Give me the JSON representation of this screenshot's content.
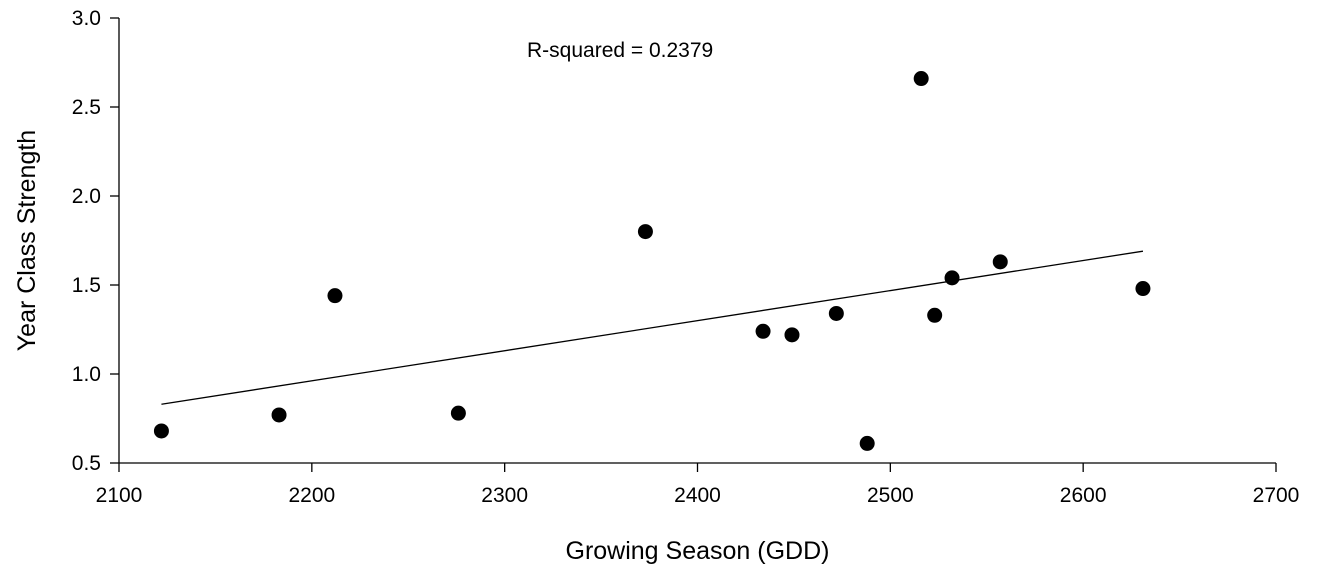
{
  "chart_data": {
    "type": "scatter",
    "title": "",
    "xlabel": "Growing Season (GDD)",
    "ylabel": "Year Class Strength",
    "xlim": [
      2100,
      2700
    ],
    "ylim": [
      0.5,
      3.0
    ],
    "x_ticks": [
      "2100",
      "2200",
      "2300",
      "2400",
      "2500",
      "2600",
      "2700"
    ],
    "y_ticks": [
      "0.5",
      "1.0",
      "1.5",
      "2.0",
      "2.5",
      "3.0"
    ],
    "grid": false,
    "annotation": "R-squared = 0.2379",
    "points": [
      {
        "x": 2122,
        "y": 0.68
      },
      {
        "x": 2183,
        "y": 0.77
      },
      {
        "x": 2212,
        "y": 1.44
      },
      {
        "x": 2276,
        "y": 0.78
      },
      {
        "x": 2373,
        "y": 1.8
      },
      {
        "x": 2434,
        "y": 1.24
      },
      {
        "x": 2449,
        "y": 1.22
      },
      {
        "x": 2472,
        "y": 1.34
      },
      {
        "x": 2488,
        "y": 0.61
      },
      {
        "x": 2516,
        "y": 2.66
      },
      {
        "x": 2523,
        "y": 1.33
      },
      {
        "x": 2532,
        "y": 1.54
      },
      {
        "x": 2557,
        "y": 1.63
      },
      {
        "x": 2631,
        "y": 1.48
      }
    ],
    "trendline": {
      "x": [
        2122,
        2631
      ],
      "y": [
        0.83,
        1.69
      ]
    }
  }
}
